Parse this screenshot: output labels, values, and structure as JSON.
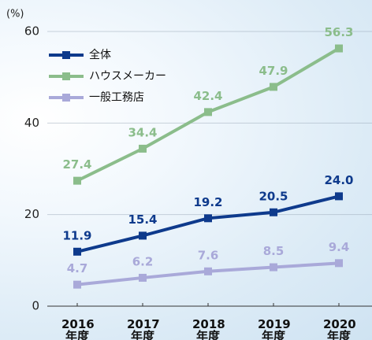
{
  "chart_data": {
    "type": "line",
    "y_unit": "(%)",
    "categories": [
      "2016年度",
      "2017年度",
      "2018年度",
      "2019年度",
      "2020年度"
    ],
    "series": [
      {
        "name": "全体",
        "color": "#0e3a8c",
        "values": [
          11.9,
          15.4,
          19.2,
          20.5,
          24.0
        ],
        "value_labels": [
          "11.9",
          "15.4",
          "19.2",
          "20.5",
          "24.0"
        ]
      },
      {
        "name": "ハウスメーカー",
        "color": "#8bbd8b",
        "values": [
          27.4,
          34.4,
          42.4,
          47.9,
          56.3
        ]
      },
      {
        "name": "一般工務店",
        "color": "#a9a9d9",
        "values": [
          4.7,
          6.2,
          7.6,
          8.5,
          9.4
        ]
      }
    ],
    "ylim": [
      0,
      60
    ],
    "yticks": [
      0,
      20,
      40,
      60
    ],
    "grid": true
  }
}
